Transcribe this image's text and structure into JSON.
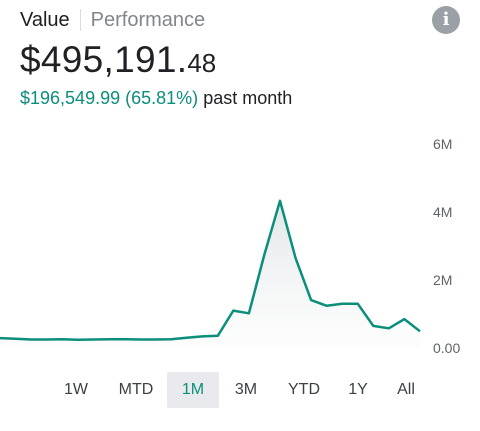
{
  "header": {
    "tabs": [
      {
        "label": "Value",
        "active": true
      },
      {
        "label": "Performance",
        "active": false
      }
    ],
    "info_icon": "info-icon"
  },
  "summary": {
    "value_main": "$495,191.",
    "value_cents": "48",
    "change_amount": "$196,549.99",
    "change_percent": "(65.81%)",
    "change_period": "past month"
  },
  "colors": {
    "accent": "#0b8e7a",
    "text": "#202124",
    "muted": "#80868b",
    "selected_bg": "#e8eaed"
  },
  "ranges": {
    "selected": "1M",
    "options": [
      "1W",
      "MTD",
      "1M",
      "3M",
      "YTD",
      "1Y",
      "All"
    ]
  },
  "chart_data": {
    "type": "area",
    "title": "",
    "xlabel": "",
    "ylabel": "",
    "ylim": [
      0,
      6000000
    ],
    "ytick_labels": [
      "0.00",
      "2M",
      "4M",
      "6M"
    ],
    "ytick_values": [
      0,
      2000000,
      4000000,
      6000000
    ],
    "y_axis_position": "right",
    "grid": false,
    "series": [
      {
        "values": [
          290000,
          270000,
          250000,
          250000,
          260000,
          240000,
          250000,
          260000,
          260000,
          250000,
          250000,
          260000,
          300000,
          340000,
          360000,
          1100000,
          1020000,
          2750000,
          4330000,
          2640000,
          1410000,
          1240000,
          1300000,
          1300000,
          650000,
          580000,
          850000,
          490000
        ]
      }
    ]
  }
}
